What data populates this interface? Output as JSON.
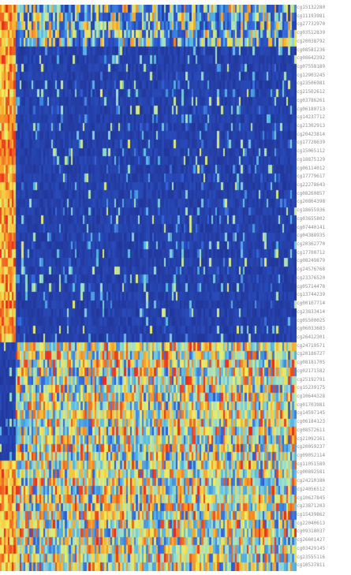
{
  "chart_data": {
    "type": "heatmap",
    "title": "",
    "xlabel": "",
    "ylabel": "",
    "colormap": [
      "#1f2d8c",
      "#2f5fd8",
      "#56b8e6",
      "#9fe0c8",
      "#f3ec5a",
      "#f7a22a",
      "#e8281c"
    ],
    "row_labels": [
      "cg15132280",
      "cg11193981",
      "cg27732970",
      "cg03512839",
      "cg20038792",
      "cg08581236",
      "cg08642392",
      "cg07558189",
      "cg12903245",
      "cg23506981",
      "cg21502612",
      "cg03786261",
      "cg06180713",
      "cg14237712",
      "cg21302913",
      "cg20423814",
      "cg17728639",
      "cg15065112",
      "cg18875129",
      "cg06114012",
      "cg17779617",
      "cg22278643",
      "cg08260857",
      "cg20864398",
      "cg18655936",
      "cg03655802",
      "cg07440141",
      "cg04388935",
      "cg20362770",
      "cg17700712",
      "cg08249879",
      "cg24576768",
      "cg23376520",
      "cg05714478",
      "cg13744239",
      "cg00107714",
      "cg23833414",
      "cg05500025",
      "cg06033683",
      "cg26412301",
      "cg24719571",
      "cg20186727",
      "cg08181705",
      "cg02171582",
      "cg25192791",
      "cg15239175",
      "cg10644328",
      "cg01703981",
      "cg14597145",
      "cg06184123",
      "cg08572611",
      "cg21092161",
      "cg20059237",
      "cg09052114",
      "cg11051589",
      "cg00892581",
      "cg24210186",
      "cg24056512",
      "cg10627845",
      "cg23871203",
      "cg15439862",
      "cg22040613",
      "cg09318037",
      "cg26601427",
      "cg03429145",
      "cg23555116",
      "cg10527811"
    ],
    "columns": 150,
    "row_blocks": [
      {
        "rows": [
          0,
          4
        ],
        "left_cluster": "high",
        "right_cluster": "mixed"
      },
      {
        "rows": [
          5,
          39
        ],
        "left_cluster": "high",
        "right_cluster": "low"
      },
      {
        "rows": [
          40,
          53
        ],
        "left_cluster": "low",
        "right_cluster": "high"
      },
      {
        "rows": [
          54,
          66
        ],
        "left_cluster": "high",
        "right_cluster": "high"
      }
    ],
    "column_split": 0.055,
    "value_range": [
      0,
      1
    ]
  }
}
